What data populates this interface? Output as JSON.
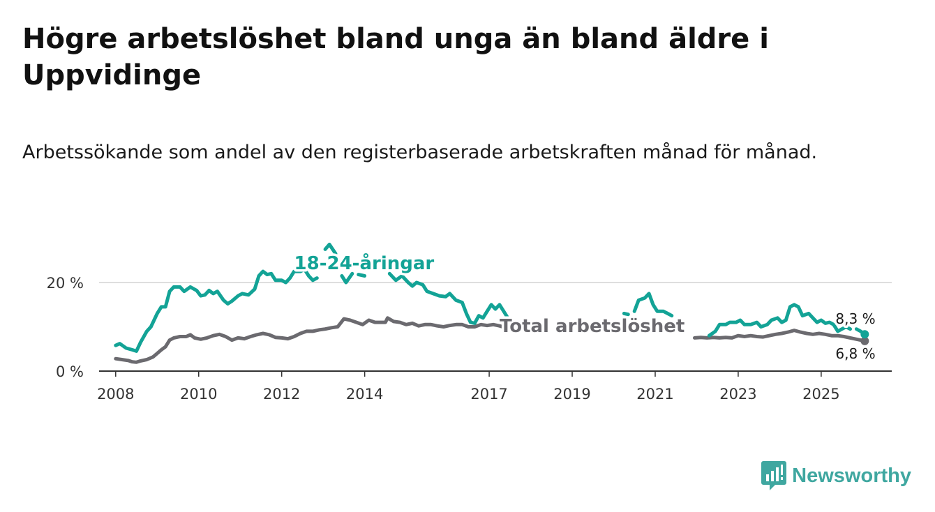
{
  "title": "Högre arbetslöshet bland unga än bland äldre i Uppvidinge",
  "subtitle": "Arbetssökande som andel av den registerbaserade arbetskraften månad för månad.",
  "brand": {
    "name": "Newsworthy",
    "color": "#3fa7a0"
  },
  "chart_data": {
    "type": "line",
    "xlim": [
      2007.6,
      2026.7
    ],
    "ylim": [
      0,
      30
    ],
    "x_ticks": [
      {
        "value": 2008,
        "label": "2008"
      },
      {
        "value": 2010,
        "label": "2010"
      },
      {
        "value": 2012,
        "label": "2012"
      },
      {
        "value": 2014,
        "label": "2014"
      },
      {
        "value": 2017,
        "label": "2017"
      },
      {
        "value": 2019,
        "label": "2019"
      },
      {
        "value": 2021,
        "label": "2021"
      },
      {
        "value": 2023,
        "label": "2023"
      },
      {
        "value": 2025,
        "label": "2025"
      }
    ],
    "y_ticks": [
      {
        "value": 0,
        "label": "0 %"
      },
      {
        "value": 20,
        "label": "20 %"
      }
    ],
    "series": [
      {
        "name": "18-24-åringar",
        "label": "18-24-åringar",
        "color": "#13a396",
        "end_label": "8,3 %",
        "segments": [
          [
            [
              2008.0,
              5.8
            ],
            [
              2008.1,
              6.2
            ],
            [
              2008.25,
              5.2
            ],
            [
              2008.4,
              4.8
            ],
            [
              2008.5,
              4.5
            ],
            [
              2008.6,
              6.5
            ],
            [
              2008.75,
              9.0
            ],
            [
              2008.85,
              10.0
            ],
            [
              2009.0,
              13.0
            ],
            [
              2009.1,
              14.5
            ],
            [
              2009.2,
              14.5
            ],
            [
              2009.3,
              18.0
            ],
            [
              2009.4,
              19.0
            ],
            [
              2009.55,
              19.0
            ],
            [
              2009.65,
              18.0
            ],
            [
              2009.8,
              19.0
            ],
            [
              2009.95,
              18.2
            ],
            [
              2010.05,
              17.0
            ],
            [
              2010.15,
              17.2
            ],
            [
              2010.25,
              18.2
            ],
            [
              2010.35,
              17.5
            ],
            [
              2010.45,
              18.0
            ],
            [
              2010.6,
              16.0
            ],
            [
              2010.7,
              15.2
            ],
            [
              2010.8,
              15.8
            ],
            [
              2010.95,
              17.0
            ],
            [
              2011.05,
              17.5
            ],
            [
              2011.2,
              17.2
            ],
            [
              2011.35,
              18.5
            ],
            [
              2011.45,
              21.5
            ],
            [
              2011.55,
              22.5
            ],
            [
              2011.65,
              21.8
            ],
            [
              2011.75,
              22.0
            ],
            [
              2011.85,
              20.5
            ],
            [
              2012.0,
              20.5
            ],
            [
              2012.1,
              20.0
            ],
            [
              2012.2,
              21.0
            ],
            [
              2012.3,
              22.5
            ],
            [
              2012.45,
              22.5
            ],
            [
              2012.55,
              23.0
            ],
            [
              2012.65,
              21.5
            ],
            [
              2012.75,
              20.5
            ],
            [
              2012.85,
              21.0
            ]
          ],
          [
            [
              2013.05,
              27.5
            ],
            [
              2013.15,
              28.6
            ],
            [
              2013.3,
              26.5
            ]
          ],
          [
            [
              2013.45,
              21.5
            ],
            [
              2013.55,
              20.0
            ],
            [
              2013.7,
              22.0
            ]
          ],
          [
            [
              2013.85,
              21.8
            ],
            [
              2014.0,
              21.5
            ]
          ],
          [
            [
              2014.6,
              22.0
            ],
            [
              2014.75,
              20.5
            ],
            [
              2014.9,
              21.5
            ],
            [
              2015.05,
              20.0
            ],
            [
              2015.15,
              19.2
            ],
            [
              2015.25,
              20.0
            ],
            [
              2015.4,
              19.5
            ],
            [
              2015.5,
              18.0
            ],
            [
              2015.65,
              17.5
            ],
            [
              2015.8,
              17.0
            ],
            [
              2015.95,
              16.8
            ],
            [
              2016.05,
              17.5
            ],
            [
              2016.2,
              16.0
            ],
            [
              2016.35,
              15.5
            ],
            [
              2016.45,
              13.0
            ],
            [
              2016.55,
              11.0
            ],
            [
              2016.65,
              10.8
            ],
            [
              2016.75,
              12.5
            ],
            [
              2016.85,
              12.0
            ],
            [
              2016.95,
              13.5
            ],
            [
              2017.05,
              15.0
            ],
            [
              2017.15,
              14.0
            ],
            [
              2017.25,
              15.0
            ],
            [
              2017.35,
              13.5
            ],
            [
              2017.45,
              12.0
            ],
            [
              2017.6,
              11.0
            ],
            [
              2017.75,
              10.5
            ]
          ],
          [
            [
              2020.25,
              13.0
            ],
            [
              2020.35,
              12.8
            ]
          ],
          [
            [
              2020.5,
              13.5
            ],
            [
              2020.6,
              16.0
            ],
            [
              2020.75,
              16.5
            ],
            [
              2020.85,
              17.5
            ],
            [
              2020.95,
              15.0
            ],
            [
              2021.05,
              13.5
            ],
            [
              2021.2,
              13.5
            ],
            [
              2021.3,
              13.0
            ],
            [
              2021.4,
              12.5
            ]
          ],
          [
            [
              2022.3,
              8.0
            ],
            [
              2022.45,
              9.0
            ],
            [
              2022.55,
              10.5
            ],
            [
              2022.7,
              10.5
            ],
            [
              2022.8,
              11.0
            ],
            [
              2022.95,
              11.0
            ],
            [
              2023.05,
              11.5
            ],
            [
              2023.15,
              10.5
            ],
            [
              2023.3,
              10.5
            ],
            [
              2023.45,
              11.0
            ],
            [
              2023.55,
              10.0
            ],
            [
              2023.7,
              10.5
            ],
            [
              2023.8,
              11.5
            ],
            [
              2023.95,
              12.0
            ],
            [
              2024.05,
              11.0
            ],
            [
              2024.15,
              11.5
            ],
            [
              2024.25,
              14.5
            ],
            [
              2024.35,
              15.0
            ],
            [
              2024.45,
              14.5
            ],
            [
              2024.55,
              12.5
            ],
            [
              2024.7,
              13.0
            ],
            [
              2024.8,
              12.0
            ],
            [
              2024.9,
              11.0
            ],
            [
              2025.0,
              11.5
            ],
            [
              2025.1,
              10.8
            ],
            [
              2025.2,
              11.0
            ],
            [
              2025.3,
              10.5
            ],
            [
              2025.4,
              9.0
            ],
            [
              2025.5,
              9.5
            ],
            [
              2025.6,
              10.0
            ],
            [
              2025.7,
              9.5
            ]
          ],
          [
            [
              2025.85,
              9.5
            ],
            [
              2025.95,
              9.0
            ],
            [
              2026.05,
              8.3
            ]
          ]
        ]
      },
      {
        "name": "Total arbetslöshet",
        "label": "Total arbetslöshet",
        "color": "#6b6a6f",
        "end_label": "6,8 %",
        "segments": [
          [
            [
              2008.0,
              2.8
            ],
            [
              2008.15,
              2.6
            ],
            [
              2008.3,
              2.4
            ],
            [
              2008.4,
              2.1
            ],
            [
              2008.5,
              2.0
            ],
            [
              2008.6,
              2.3
            ],
            [
              2008.75,
              2.6
            ],
            [
              2008.9,
              3.2
            ],
            [
              2009.0,
              4.0
            ],
            [
              2009.1,
              4.8
            ],
            [
              2009.2,
              5.5
            ],
            [
              2009.3,
              7.0
            ],
            [
              2009.4,
              7.5
            ],
            [
              2009.55,
              7.8
            ],
            [
              2009.7,
              7.8
            ],
            [
              2009.8,
              8.2
            ],
            [
              2009.9,
              7.5
            ],
            [
              2010.05,
              7.2
            ],
            [
              2010.2,
              7.5
            ],
            [
              2010.35,
              8.0
            ],
            [
              2010.5,
              8.3
            ],
            [
              2010.65,
              7.8
            ],
            [
              2010.8,
              7.0
            ],
            [
              2010.95,
              7.5
            ],
            [
              2011.1,
              7.3
            ],
            [
              2011.25,
              7.8
            ],
            [
              2011.4,
              8.2
            ],
            [
              2011.55,
              8.5
            ],
            [
              2011.7,
              8.2
            ],
            [
              2011.85,
              7.6
            ],
            [
              2012.0,
              7.5
            ],
            [
              2012.15,
              7.3
            ],
            [
              2012.3,
              7.8
            ],
            [
              2012.45,
              8.5
            ],
            [
              2012.6,
              9.0
            ],
            [
              2012.75,
              9.0
            ],
            [
              2012.9,
              9.3
            ],
            [
              2013.05,
              9.5
            ],
            [
              2013.2,
              9.8
            ],
            [
              2013.35,
              10.0
            ],
            [
              2013.5,
              11.8
            ],
            [
              2013.65,
              11.5
            ],
            [
              2013.8,
              11.0
            ],
            [
              2013.95,
              10.5
            ],
            [
              2014.1,
              11.5
            ],
            [
              2014.25,
              11.0
            ],
            [
              2014.4,
              11.0
            ],
            [
              2014.5,
              11.0
            ],
            [
              2014.55,
              12.0
            ],
            [
              2014.7,
              11.2
            ],
            [
              2014.85,
              11.0
            ],
            [
              2015.0,
              10.5
            ],
            [
              2015.15,
              10.8
            ],
            [
              2015.3,
              10.2
            ],
            [
              2015.45,
              10.5
            ],
            [
              2015.6,
              10.5
            ],
            [
              2015.75,
              10.2
            ],
            [
              2015.9,
              10.0
            ],
            [
              2016.05,
              10.3
            ],
            [
              2016.2,
              10.5
            ],
            [
              2016.35,
              10.5
            ],
            [
              2016.5,
              10.0
            ],
            [
              2016.65,
              10.0
            ],
            [
              2016.8,
              10.5
            ],
            [
              2016.95,
              10.3
            ],
            [
              2017.1,
              10.5
            ],
            [
              2017.25,
              10.2
            ],
            [
              2017.4,
              9.8
            ],
            [
              2017.55,
              9.6
            ],
            [
              2017.7,
              9.5
            ]
          ],
          [
            [
              2021.95,
              7.5
            ],
            [
              2022.1,
              7.6
            ],
            [
              2022.25,
              7.5
            ],
            [
              2022.4,
              7.6
            ],
            [
              2022.55,
              7.5
            ],
            [
              2022.7,
              7.6
            ],
            [
              2022.85,
              7.5
            ],
            [
              2023.0,
              8.0
            ],
            [
              2023.15,
              7.8
            ],
            [
              2023.3,
              8.0
            ],
            [
              2023.45,
              7.8
            ],
            [
              2023.6,
              7.7
            ],
            [
              2023.75,
              8.0
            ],
            [
              2023.9,
              8.3
            ],
            [
              2024.05,
              8.5
            ],
            [
              2024.2,
              8.8
            ],
            [
              2024.35,
              9.2
            ],
            [
              2024.5,
              8.8
            ],
            [
              2024.65,
              8.5
            ],
            [
              2024.8,
              8.3
            ],
            [
              2024.95,
              8.5
            ],
            [
              2025.1,
              8.3
            ],
            [
              2025.25,
              8.0
            ],
            [
              2025.4,
              8.0
            ],
            [
              2025.55,
              7.8
            ],
            [
              2025.7,
              7.5
            ],
            [
              2025.85,
              7.2
            ],
            [
              2026.05,
              6.8
            ]
          ]
        ]
      }
    ]
  }
}
